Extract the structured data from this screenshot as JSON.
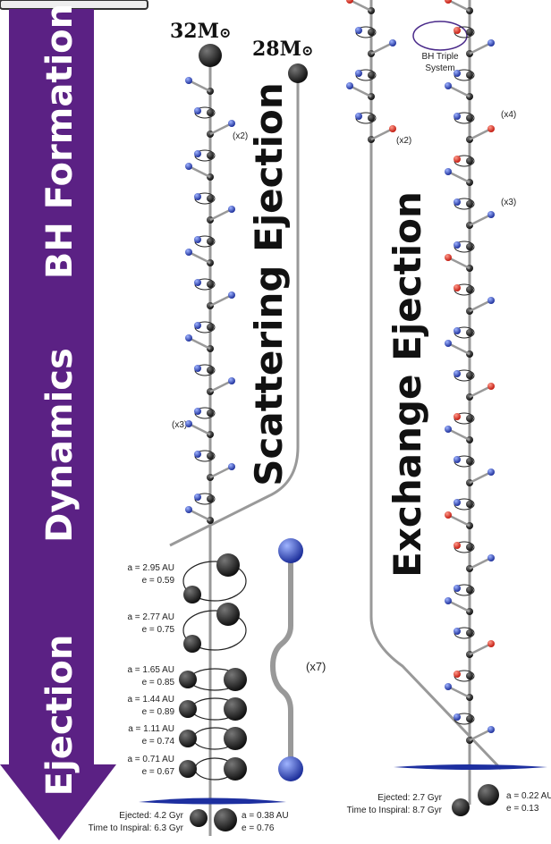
{
  "phases": [
    "BH Formation",
    "Dynamics",
    "Ejection"
  ],
  "scattering": {
    "masses": [
      {
        "value": "32M",
        "sub": "⊙"
      },
      {
        "value": "28M",
        "sub": "⊙"
      }
    ],
    "title": "Scattering Ejection",
    "repeats": [
      "(x2)",
      "(x3)",
      "(x7)"
    ],
    "orbits": [
      {
        "a": "a = 2.95 AU",
        "e": "e = 0.59"
      },
      {
        "a": "a = 2.77 AU",
        "e": "e = 0.75"
      },
      {
        "a": "a = 1.65 AU",
        "e": "e = 0.85"
      },
      {
        "a": "a = 1.44 AU",
        "e": "e = 0.89"
      },
      {
        "a": "a = 1.11 AU",
        "e": "e = 0.74"
      },
      {
        "a": "a = 0.71 AU",
        "e": "e = 0.67"
      }
    ],
    "final": {
      "ejected": "Ejected: 4.2 Gyr",
      "inspiral": "Time to Inspiral: 6.3 Gyr",
      "a": "a = 0.38 AU",
      "e": "e = 0.76"
    }
  },
  "exchange": {
    "title": "Exchange Ejection",
    "triple_label": [
      "BH Triple",
      "System"
    ],
    "repeats": [
      "(x2)",
      "(x4)",
      "(x3)"
    ],
    "final": {
      "ejected": "Ejected: 2.7 Gyr",
      "inspiral": "Time to Inspiral: 8.7 Gyr",
      "a": "a = 0.22 AU",
      "e": "e = 0.13"
    }
  }
}
